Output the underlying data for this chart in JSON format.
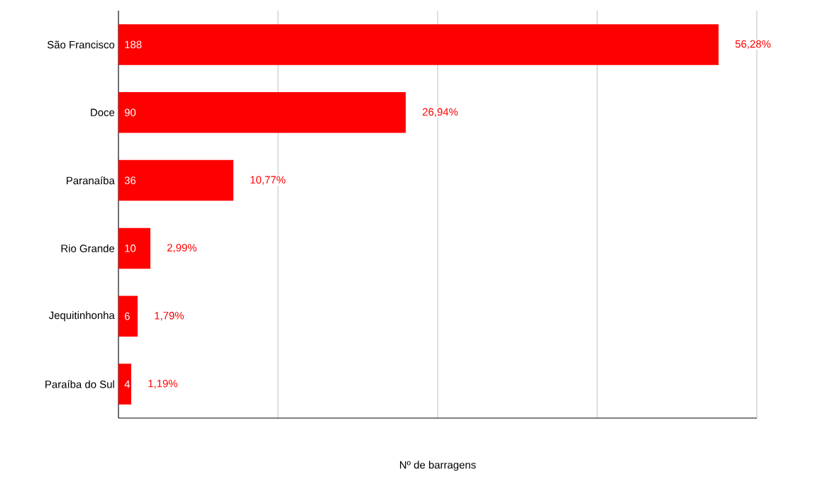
{
  "chart_data": {
    "type": "bar",
    "orientation": "horizontal",
    "xlabel": "Nº de barragens",
    "categories": [
      "São Francisco",
      "Doce",
      "Paranaíba",
      "Rio Grande",
      "Jequitinhonha",
      "Paraíba do Sul"
    ],
    "values": [
      188,
      90,
      36,
      10,
      6,
      4
    ],
    "color": "#ff0000",
    "data_labels": true,
    "xlim": [
      0,
      200
    ],
    "xticks": [
      {
        "value": 0,
        "label": null
      },
      {
        "value": 50,
        "label": null
      },
      {
        "value": 100,
        "label": null
      },
      {
        "value": 150,
        "label": null
      },
      {
        "value": 200,
        "label": null
      }
    ],
    "tick_labels": "y",
    "grid": "x",
    "annotations": [
      {
        "text": "56,28%",
        "x": 188,
        "y": "São Francisco"
      },
      {
        "text": "26,94%",
        "x": 90,
        "y": "Doce"
      },
      {
        "text": "10,77%",
        "x": 36,
        "y": "Paranaíba"
      },
      {
        "text": "2,99%",
        "x": 10,
        "y": "Rio Grande"
      },
      {
        "text": "1,79%",
        "x": 6,
        "y": "Jequitinhonha"
      },
      {
        "text": "1,19%",
        "x": 4,
        "y": "Paraíba do Sul"
      }
    ]
  }
}
